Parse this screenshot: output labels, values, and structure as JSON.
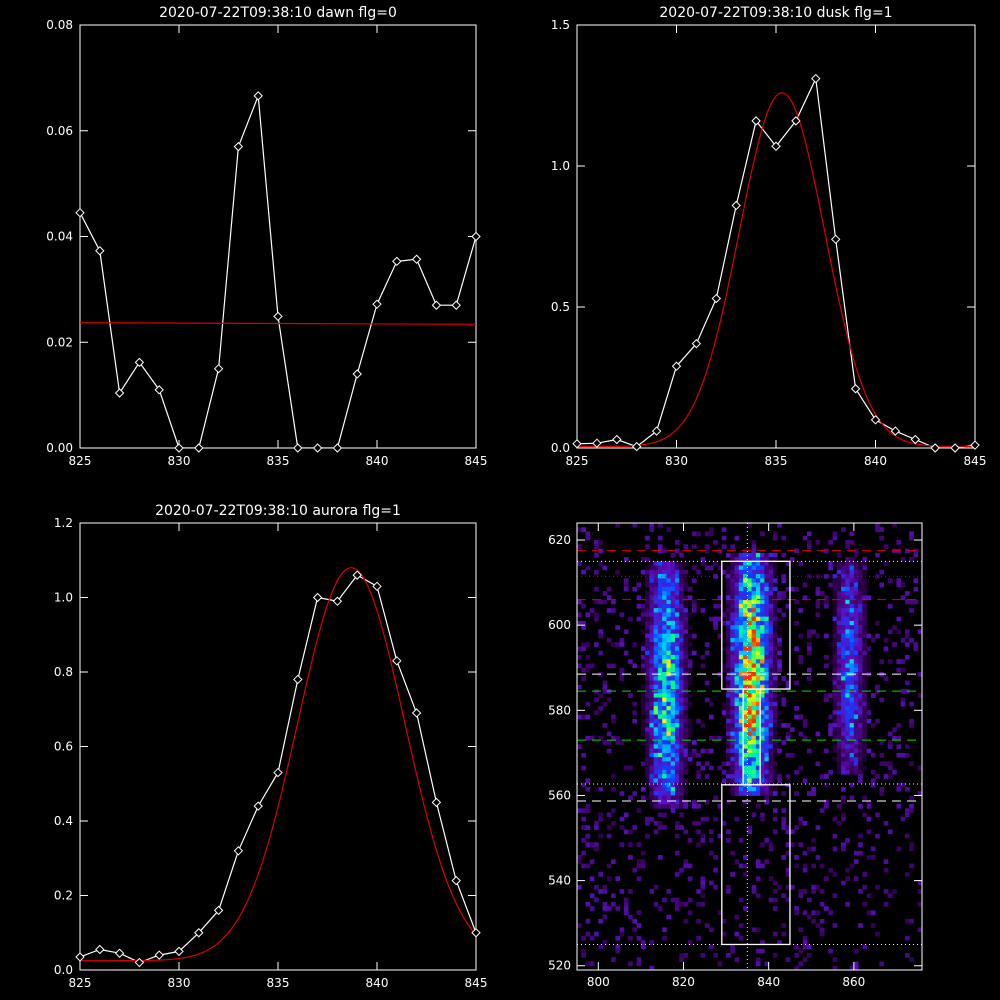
{
  "chart_data": [
    {
      "type": "line",
      "title": "2020-07-22T09:38:10 dawn flg=0",
      "xlim": [
        825,
        845
      ],
      "ylim": [
        0,
        0.08
      ],
      "x_ticks": [
        "825",
        "830",
        "835",
        "840",
        "845"
      ],
      "y_ticks": [
        "0.00",
        "0.02",
        "0.04",
        "0.06",
        "0.08"
      ],
      "series": [
        {
          "color": "#ffffff",
          "marker": "diamond",
          "x": [
            825,
            826,
            827,
            828,
            829,
            830,
            831,
            832,
            833,
            834,
            835,
            836,
            837,
            838,
            839,
            840,
            841,
            842,
            843,
            844,
            845
          ],
          "y": [
            0.0445,
            0.0373,
            0.0104,
            0.0162,
            0.011,
            0.0,
            0.0,
            0.015,
            0.057,
            0.0666,
            0.0249,
            0.0,
            0.0,
            0.0,
            0.014,
            0.0272,
            0.0353,
            0.0357,
            0.027,
            0.027,
            0.04
          ]
        },
        {
          "color": "#dd0000",
          "marker": "none",
          "x": [
            825,
            845
          ],
          "y": [
            0.0237,
            0.0234
          ]
        }
      ]
    },
    {
      "type": "line",
      "title": "2020-07-22T09:38:10 dusk flg=1",
      "xlim": [
        825,
        845
      ],
      "ylim": [
        0,
        1.5
      ],
      "x_ticks": [
        "825",
        "830",
        "835",
        "840",
        "845"
      ],
      "y_ticks": [
        "0.0",
        "0.5",
        "1.0",
        "1.5"
      ],
      "series": [
        {
          "color": "#ffffff",
          "marker": "diamond",
          "x": [
            825,
            826,
            827,
            828,
            829,
            830,
            831,
            832,
            833,
            834,
            835,
            836,
            837,
            838,
            839,
            840,
            841,
            842,
            843,
            844,
            845
          ],
          "y": [
            0.015,
            0.017,
            0.03,
            0.005,
            0.06,
            0.29,
            0.37,
            0.53,
            0.86,
            1.16,
            1.07,
            1.16,
            1.31,
            0.74,
            0.21,
            0.1,
            0.06,
            0.03,
            0.0,
            0.0,
            0.01
          ]
        },
        {
          "color": "#dd0000",
          "marker": "none",
          "fit": {
            "kind": "gaussian",
            "amplitude": 1.255,
            "center": 835.3,
            "sigma": 2.15,
            "offset": 0.005
          }
        }
      ]
    },
    {
      "type": "line",
      "title": "2020-07-22T09:38:10 aurora flg=1",
      "xlim": [
        825,
        845
      ],
      "ylim": [
        0,
        1.2
      ],
      "x_ticks": [
        "825",
        "830",
        "835",
        "840",
        "845"
      ],
      "y_ticks": [
        "0.0",
        "0.2",
        "0.4",
        "0.6",
        "0.8",
        "1.0",
        "1.2"
      ],
      "series": [
        {
          "color": "#ffffff",
          "marker": "diamond",
          "x": [
            825,
            826,
            827,
            828,
            829,
            830,
            831,
            832,
            833,
            834,
            835,
            836,
            837,
            838,
            839,
            840,
            841,
            842,
            843,
            844,
            845
          ],
          "y": [
            0.035,
            0.055,
            0.045,
            0.02,
            0.04,
            0.05,
            0.1,
            0.16,
            0.32,
            0.44,
            0.53,
            0.78,
            1.0,
            0.99,
            1.06,
            1.03,
            0.83,
            0.69,
            0.45,
            0.24,
            0.1
          ]
        },
        {
          "color": "#dd0000",
          "marker": "none",
          "fit": {
            "kind": "gaussian",
            "amplitude": 1.055,
            "center": 838.7,
            "sigma": 2.7,
            "offset": 0.025
          }
        }
      ]
    },
    {
      "type": "heatmap",
      "title": "",
      "xlim": [
        795,
        876
      ],
      "ylim": [
        519,
        624
      ],
      "x_ticks": [
        "800",
        "820",
        "840",
        "860"
      ],
      "y_ticks": [
        "520",
        "540",
        "560",
        "580",
        "600",
        "620"
      ],
      "colormap": [
        "#000000",
        "#3a0060",
        "#5a10c0",
        "#1040ff",
        "#00c8ff",
        "#00ff80",
        "#ffff00",
        "#ff3000"
      ],
      "emission_columns": [
        {
          "x_center": 816,
          "width": 2.6,
          "y_range": [
            557,
            615
          ],
          "peak": 0.7
        },
        {
          "x_center": 836,
          "width": 2.8,
          "y_range": [
            560,
            617
          ],
          "peak": 1.0
        },
        {
          "x_center": 859,
          "width": 2.2,
          "y_range": [
            565,
            615
          ],
          "peak": 0.45
        }
      ],
      "boxes": [
        {
          "x": [
            829,
            845
          ],
          "y": [
            585,
            615
          ],
          "color": "#ffffff"
        },
        {
          "x": [
            829,
            845
          ],
          "y": [
            525,
            562.5
          ],
          "color": "#ffffff"
        },
        {
          "x": [
            834,
            838
          ],
          "y": [
            562.5,
            585
          ],
          "color": "#ffffff"
        }
      ],
      "horizontal_lines": [
        {
          "y": 617.5,
          "color": "#dd0000",
          "style": "dashed"
        },
        {
          "y": 606,
          "color": "#dd0000",
          "style": "dashed"
        },
        {
          "y": 615,
          "color": "#ffffff",
          "style": "dotted"
        },
        {
          "y": 611.5,
          "color": "#dd0000",
          "style": "dotted"
        },
        {
          "y": 588.5,
          "color": "#ffffff",
          "style": "dashed"
        },
        {
          "y": 584.5,
          "color": "#00dd00",
          "style": "dashed"
        },
        {
          "y": 573,
          "color": "#00dd00",
          "style": "dashed"
        },
        {
          "y": 562.7,
          "color": "#ffffff",
          "style": "dotted"
        },
        {
          "y": 558.7,
          "color": "#ffffff",
          "style": "dashed"
        },
        {
          "y": 525,
          "color": "#ffffff",
          "style": "dotted"
        }
      ],
      "vertical_lines": [
        {
          "x": 835,
          "color": "#ffffff",
          "style": "dotted"
        }
      ]
    }
  ]
}
